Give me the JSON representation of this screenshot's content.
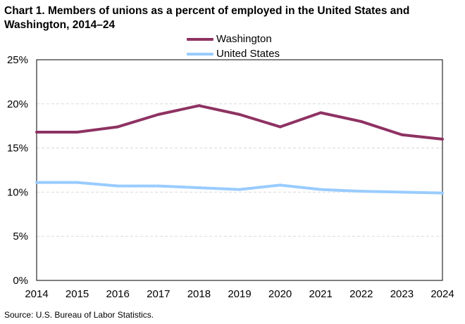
{
  "title": "Chart 1. Members of unions as a percent of employed in the United States and Washington, 2014–24",
  "source": "Source: U.S. Bureau of Labor Statistics.",
  "chart_data": {
    "type": "line",
    "title": "Chart 1. Members of unions as a percent of employed in the United States and Washington, 2014–24",
    "xlabel": "",
    "ylabel": "",
    "categories": [
      "2014",
      "2015",
      "2016",
      "2017",
      "2018",
      "2019",
      "2020",
      "2021",
      "2022",
      "2023",
      "2024"
    ],
    "y_ticks": [
      "0%",
      "5%",
      "10%",
      "15%",
      "20%",
      "25%"
    ],
    "ylim": [
      0,
      25
    ],
    "grid": "horizontal dashed",
    "legend_position": "top-center",
    "series": [
      {
        "name": "Washington",
        "color": "#8e3262",
        "values": [
          16.8,
          16.8,
          17.4,
          18.8,
          19.8,
          18.8,
          17.4,
          19.0,
          18.0,
          16.5,
          16.0
        ]
      },
      {
        "name": "United States",
        "color": "#99ccff",
        "values": [
          11.1,
          11.1,
          10.7,
          10.7,
          10.5,
          10.3,
          10.8,
          10.3,
          10.1,
          10.0,
          9.9
        ]
      }
    ]
  }
}
